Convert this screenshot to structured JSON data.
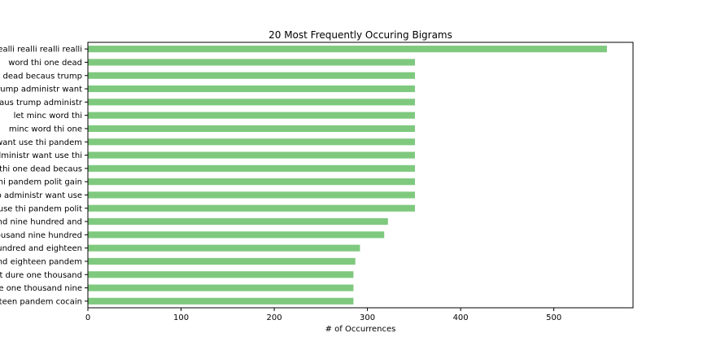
{
  "chart_data": {
    "type": "bar",
    "orientation": "horizontal",
    "title": "20 Most Frequently Occuring Bigrams",
    "xlabel": "# of Occurrences",
    "ylabel": "",
    "xlim": [
      0,
      585
    ],
    "xticks": [
      0,
      100,
      200,
      300,
      400,
      500
    ],
    "grid": false,
    "legend": "none",
    "bar_color": "#7fc97f",
    "categories": [
      "realli realli realli realli",
      "word thi one dead",
      "one dead becaus trump",
      "becaus trump administr want",
      "dead becaus trump administr",
      "let minc word thi",
      "minc word thi one",
      "administr want use thi pandem",
      "trump administr want use thi",
      "word thi one dead becaus",
      "use thi pandem polit gain",
      "trump administr want use",
      "want use thi pandem polit",
      "thousand nine hundred and",
      "one thousand nine hundred",
      "nine hundred and eighteen",
      "hundred and eighteen pandem",
      "use it dure one thousand",
      "dure one thousand nine",
      "eighteen pandem cocain"
    ],
    "values": [
      557,
      351,
      351,
      351,
      351,
      351,
      351,
      351,
      351,
      351,
      351,
      351,
      351,
      322,
      318,
      292,
      287,
      285,
      285,
      285
    ]
  }
}
